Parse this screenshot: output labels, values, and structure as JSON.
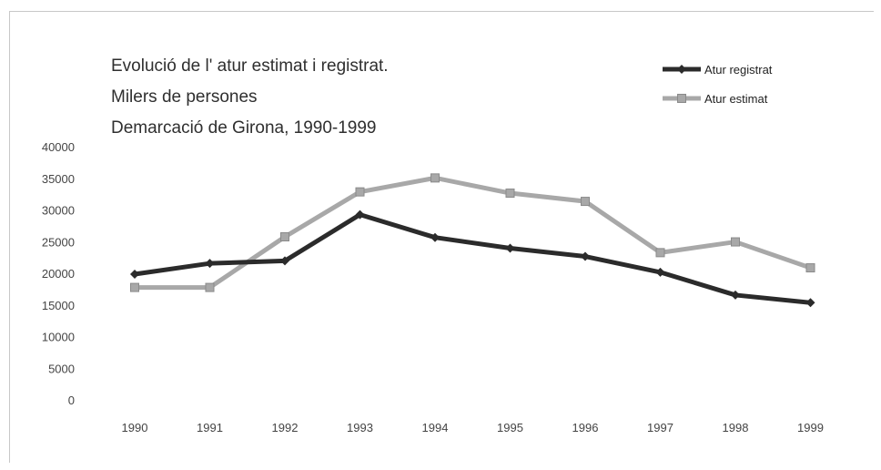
{
  "chart_data": {
    "type": "line",
    "title": "Evolució de l' atur estimat i registrat.",
    "subtitle_1": "Milers de persones",
    "subtitle_2": "Demarcació de Girona, 1990-1999",
    "x": [
      "1990",
      "1991",
      "1992",
      "1993",
      "1994",
      "1995",
      "1996",
      "1997",
      "1998",
      "1999"
    ],
    "ylim": [
      0,
      40000
    ],
    "yticks": [
      "40000",
      "35000",
      "30000",
      "25000",
      "20000",
      "15000",
      "10000",
      "5000",
      "0"
    ],
    "legend_position": "top-right",
    "grid": false,
    "series": [
      {
        "name": "Atur registrat",
        "color": "#2b2b2b",
        "marker": "diamond",
        "values": [
          20000,
          21700,
          22100,
          29400,
          25800,
          24100,
          22800,
          20300,
          16700,
          15500
        ]
      },
      {
        "name": "Atur estimat",
        "color": "#a8a8a8",
        "marker": "square",
        "values": [
          17900,
          17900,
          25900,
          33000,
          35200,
          32800,
          31500,
          23400,
          25100,
          21000
        ]
      }
    ]
  }
}
